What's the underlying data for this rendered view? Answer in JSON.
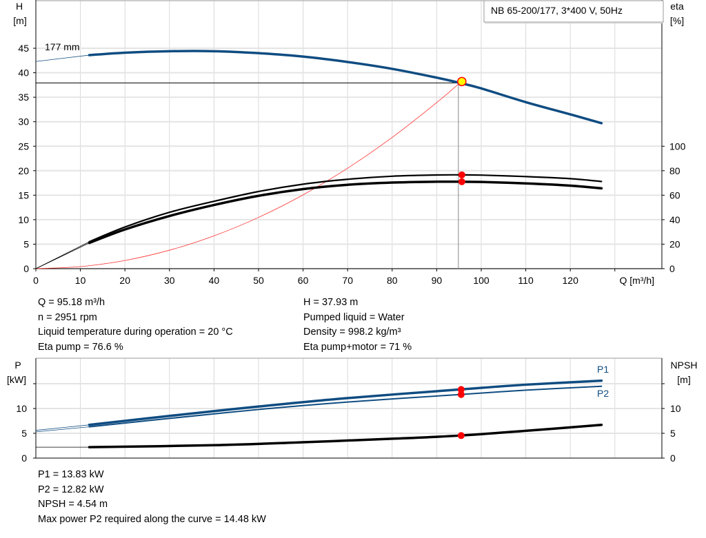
{
  "title_box": "NB 65-200/177, 3*400 V, 50Hz",
  "colors": {
    "head": "#0f4c81",
    "efficiency": "#000000",
    "system": "#ff3030",
    "power": "#0f4c81",
    "npsh": "#000000",
    "marker": "#ff0000",
    "duty_marker": "#ffff00",
    "grid": "#d8d8d8"
  },
  "chart_data": [
    {
      "type": "line",
      "xlabel": "Q [m³/h]",
      "ylabel_left": [
        "H",
        "[m]"
      ],
      "ylabel_right": [
        "eta",
        "[%]"
      ],
      "xlim": [
        0,
        140
      ],
      "ylim_left": [
        0,
        55
      ],
      "ylim_right_map": {
        "eta_100_at_H": 25
      },
      "x_ticks": [
        0,
        10,
        20,
        30,
        40,
        50,
        60,
        70,
        80,
        90,
        100,
        110,
        120
      ],
      "y_ticks_left": [
        0,
        5,
        10,
        15,
        20,
        25,
        30,
        35,
        40,
        45
      ],
      "y_ticks_right": [
        0,
        20,
        40,
        60,
        80,
        100
      ],
      "grid": true,
      "annotation": "177 mm",
      "duty_point": {
        "Q": 95.18,
        "H": 37.93
      },
      "series": [
        {
          "key": "head",
          "axis": "left",
          "x": [
            0,
            12,
            20,
            30,
            40,
            50,
            60,
            70,
            80,
            90,
            95.18,
            100,
            110,
            120,
            127
          ],
          "y": [
            42.3,
            43.6,
            44.1,
            44.4,
            44.4,
            44.0,
            43.3,
            42.2,
            40.8,
            39.0,
            37.93,
            36.8,
            34.0,
            31.5,
            29.7
          ]
        },
        {
          "key": "eta_pump",
          "axis": "right",
          "x": [
            0,
            12,
            20,
            30,
            40,
            50,
            60,
            70,
            80,
            90,
            95.18,
            100,
            110,
            120,
            127
          ],
          "y": [
            0,
            22,
            34,
            46,
            55,
            63,
            69,
            73,
            75.5,
            76.5,
            76.6,
            76.4,
            75.2,
            73.5,
            71.2
          ]
        },
        {
          "key": "eta_total",
          "axis": "right",
          "x": [
            0,
            12,
            20,
            30,
            40,
            50,
            60,
            70,
            80,
            90,
            95.18,
            100,
            110,
            120,
            127
          ],
          "y": [
            0,
            21,
            32,
            43,
            52,
            59.5,
            65,
            68.5,
            70.3,
            71,
            71,
            70.8,
            69.6,
            67.8,
            65.6
          ]
        },
        {
          "key": "system",
          "axis": "left",
          "x": [
            0,
            10,
            20,
            30,
            40,
            50,
            60,
            70,
            80,
            90,
            95.18
          ],
          "y": [
            0,
            0.42,
            1.67,
            3.77,
            6.7,
            10.47,
            15.07,
            20.51,
            26.8,
            33.91,
            37.93
          ]
        }
      ]
    },
    {
      "type": "line",
      "ylabel_left": [
        "P",
        "[kW]"
      ],
      "ylabel_right": [
        "NPSH",
        "[m]"
      ],
      "xlim": [
        0,
        140
      ],
      "ylim": [
        0,
        20
      ],
      "y_ticks_left": [
        0,
        5,
        10
      ],
      "y_ticks_right": [
        0,
        5,
        10
      ],
      "grid": true,
      "series": [
        {
          "key": "p1",
          "name": "P1",
          "x": [
            0,
            12,
            30,
            50,
            70,
            95.18,
            110,
            127
          ],
          "y": [
            5.6,
            6.7,
            8.5,
            10.4,
            12.1,
            13.83,
            14.8,
            15.6
          ]
        },
        {
          "key": "p2",
          "name": "P2",
          "x": [
            0,
            12,
            30,
            50,
            70,
            95.18,
            110,
            127
          ],
          "y": [
            5.3,
            6.3,
            8.0,
            9.8,
            11.3,
            12.82,
            13.7,
            14.48
          ]
        },
        {
          "key": "npsh",
          "x": [
            0,
            12,
            40,
            60,
            80,
            95.18,
            110,
            127
          ],
          "y": [
            2.2,
            2.2,
            2.6,
            3.2,
            3.9,
            4.54,
            5.5,
            6.7
          ]
        }
      ]
    }
  ],
  "info_top": {
    "left": [
      "Q = 95.18 m³/h",
      "n = 2951 rpm",
      "Liquid temperature during operation = 20 °C",
      "Eta pump = 76.6 %"
    ],
    "right": [
      "H = 37.93 m",
      "Pumped liquid = Water",
      "Density = 998.2 kg/m³",
      "Eta pump+motor = 71 %"
    ]
  },
  "info_bottom": [
    "P1 = 13.83 kW",
    "P2 = 12.82 kW",
    "NPSH = 4.54 m",
    "Max power P2 required along the curve = 14.48 kW"
  ]
}
